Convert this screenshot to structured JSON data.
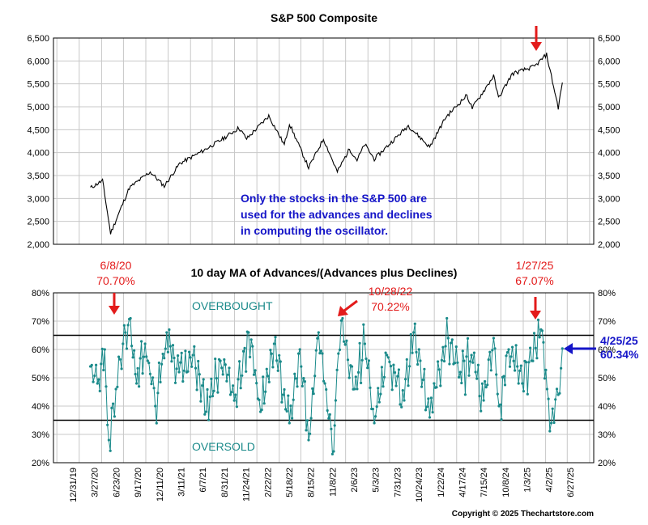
{
  "chart_data": [
    {
      "type": "line",
      "title": "S&P 500 Composite",
      "ylim": [
        2000,
        6500
      ],
      "yticks": [
        "2,000",
        "2,500",
        "3,000",
        "3,500",
        "4,000",
        "4,500",
        "5,000",
        "5,500",
        "6,000",
        "6,500"
      ],
      "grid": true,
      "series": [
        {
          "x": [
            "2019-12-31",
            "2020-02-19",
            "2020-03-23",
            "2020-06-08",
            "2020-09-02",
            "2020-10-30",
            "2021-01-01",
            "2021-04-01",
            "2021-07-01",
            "2021-09-02",
            "2021-10-04",
            "2022-01-03",
            "2022-03-08",
            "2022-03-29",
            "2022-06-16",
            "2022-08-16",
            "2022-10-12",
            "2022-12-01",
            "2023-01-01",
            "2023-02-02",
            "2023-03-13",
            "2023-07-31",
            "2023-10-27",
            "2024-01-01",
            "2024-03-28",
            "2024-04-19",
            "2024-07-16",
            "2024-08-05",
            "2024-10-01",
            "2025-01-01",
            "2025-02-19",
            "2025-04-08",
            "2025-04-25"
          ],
          "y": [
            3230,
            3390,
            2240,
            3230,
            3580,
            3270,
            3760,
            4020,
            4310,
            4540,
            4300,
            4800,
            4170,
            4630,
            3670,
            4300,
            3580,
            4080,
            3840,
            4180,
            3860,
            4590,
            4120,
            4770,
            5250,
            4970,
            5670,
            5190,
            5720,
            5880,
            6140,
            4980,
            5530
          ]
        }
      ],
      "annotation": "Only the stocks in the S&P 500 are used for the advances and declines in computing the oscillator."
    },
    {
      "type": "line",
      "title": "10 day MA of Advances/(Advances plus Declines)",
      "ylim": [
        20,
        80
      ],
      "yticks": [
        "20%",
        "30%",
        "40%",
        "50%",
        "60%",
        "70%",
        "80%"
      ],
      "grid": true,
      "reference_lines": [
        65,
        35
      ],
      "zone_labels": {
        "upper": "OVERBOUGHT",
        "lower": "OVERSOLD"
      },
      "x_tick_labels": [
        "12/31/19",
        "3/27/20",
        "6/23/20",
        "9/17/20",
        "12/11/20",
        "3/11/21",
        "6/7/21",
        "8/31/21",
        "11/24/21",
        "2/22/22",
        "5/18/22",
        "8/15/22",
        "11/8/22",
        "2/6/23",
        "5/3/23",
        "7/31/23",
        "10/24/23",
        "1/22/24",
        "4/17/24",
        "7/15/24",
        "10/8/24",
        "1/3/25",
        "4/2/25",
        "6/27/25"
      ],
      "series": [
        {
          "x": [
            "2019-12-31",
            "2020-01-29",
            "2020-02-28",
            "2020-03-16",
            "2020-04-14",
            "2020-05-13",
            "2020-06-08",
            "2020-07-08",
            "2020-08-12",
            "2020-09-23",
            "2020-11-09",
            "2020-12-30",
            "2021-02-25",
            "2021-04-20",
            "2021-06-18",
            "2021-08-19",
            "2021-10-12",
            "2021-11-30",
            "2022-01-25",
            "2022-03-29",
            "2022-05-11",
            "2022-06-16",
            "2022-07-27",
            "2022-09-27",
            "2022-10-05",
            "2022-10-28",
            "2022-12-22",
            "2023-02-02",
            "2023-03-13",
            "2023-05-04",
            "2023-07-14",
            "2023-08-22",
            "2023-10-27",
            "2023-11-14",
            "2024-01-11",
            "2024-03-01",
            "2024-04-16",
            "2024-06-05",
            "2024-07-16",
            "2024-08-07",
            "2024-09-16",
            "2024-11-11",
            "2024-12-19",
            "2025-01-27",
            "2025-02-21",
            "2025-03-10",
            "2025-04-08",
            "2025-04-25"
          ],
          "y": [
            54,
            48,
            60,
            28,
            46,
            62,
            70.7,
            48,
            62,
            40,
            66,
            52,
            58,
            38,
            56,
            44,
            66,
            38,
            62,
            34,
            60,
            28,
            66,
            24,
            42,
            70.22,
            46,
            62,
            34,
            58,
            42,
            66,
            36,
            48,
            64,
            52,
            58,
            42,
            64,
            40,
            60,
            48,
            56,
            67.07,
            46,
            34,
            44,
            60.34
          ]
        }
      ],
      "callouts": [
        {
          "date": "6/8/20",
          "value": "70.70%"
        },
        {
          "date": "10/28/22",
          "value": "70.22%"
        },
        {
          "date": "1/27/25",
          "value": "67.07%"
        },
        {
          "date": "4/25/25",
          "value": "60.34%"
        }
      ]
    }
  ],
  "copyright": "Copyright © 2025 Thechartstore.com",
  "colors": {
    "price_line": "#000000",
    "oscillator": "#1a8a8a",
    "annotation_red": "#e31b1b",
    "annotation_blue": "#1515c8",
    "background": "#ffffff"
  }
}
